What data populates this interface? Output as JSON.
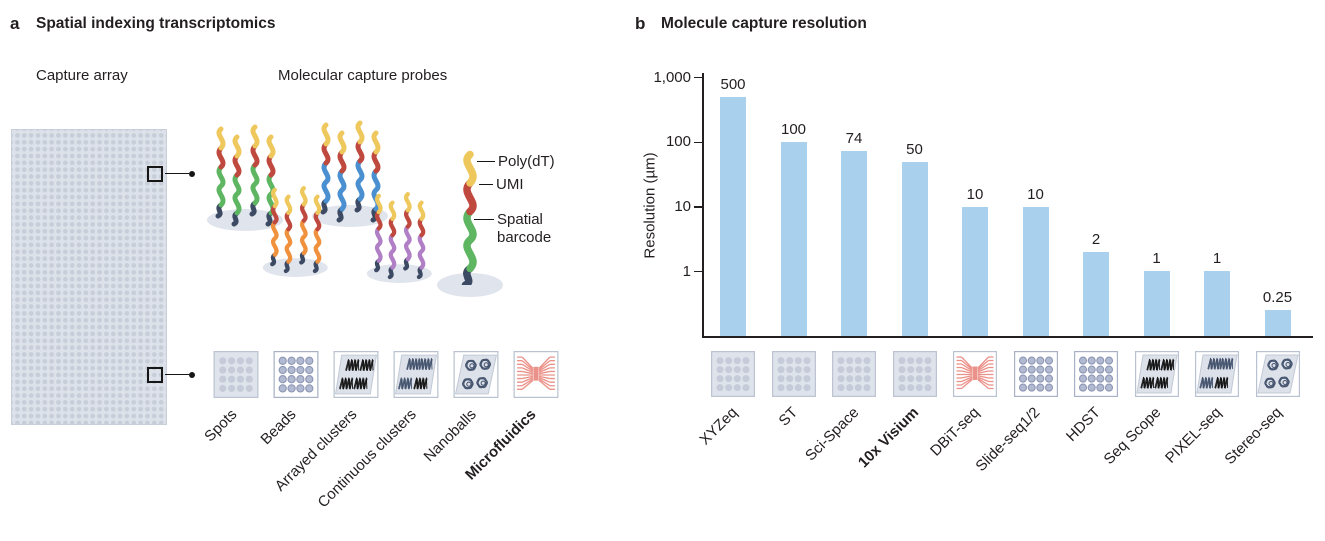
{
  "panel_a": {
    "panel_letter": "a",
    "title": "Spatial indexing transcriptomics",
    "capture_array_label": "Capture array",
    "probes_label": "Molecular capture probes",
    "probe_legend": {
      "polydt": "Poly(dT)",
      "umi": "UMI",
      "spatial": "Spatial barcode"
    },
    "array_types": [
      {
        "label": "Spots",
        "icon": "spots-icon",
        "bold": false
      },
      {
        "label": "Beads",
        "icon": "beads-icon",
        "bold": false
      },
      {
        "label": "Arrayed clusters",
        "icon": "arrayed-clusters-icon",
        "bold": false
      },
      {
        "label": "Continuous clusters",
        "icon": "continuous-clusters-icon",
        "bold": false
      },
      {
        "label": "Nanoballs",
        "icon": "nanoballs-icon",
        "bold": false
      },
      {
        "label": "Microfluidics",
        "icon": "microfluidics-icon",
        "bold": true
      }
    ]
  },
  "panel_b": {
    "panel_letter": "b",
    "title": "Molecule capture resolution"
  },
  "chart_data": {
    "type": "bar",
    "title": "Molecule capture resolution",
    "categories": [
      "XYZeq",
      "ST",
      "Sci-Space",
      "10x Visium",
      "DBiT-seq",
      "Slide-seq1/2",
      "HDST",
      "Seq Scope",
      "PIXEL-seq",
      "Stereo-seq"
    ],
    "values": [
      500,
      100,
      74,
      50,
      10,
      10,
      2,
      1,
      1,
      0.25
    ],
    "value_labels": [
      "500",
      "100",
      "74",
      "50",
      "10",
      "10",
      "2",
      "1",
      "1",
      "0.25"
    ],
    "bold_categories": [
      "10x Visium"
    ],
    "category_icons": [
      "spots-icon",
      "spots-icon",
      "spots-icon",
      "spots-icon",
      "microfluidics-icon",
      "beads-icon",
      "beads-icon",
      "arrayed-clusters-icon",
      "continuous-clusters-icon",
      "nanoballs-icon"
    ],
    "xlabel": "",
    "ylabel": "Resolution (µm)",
    "yscale": "log",
    "ylim": [
      0.1,
      1000
    ],
    "yticks": [
      "1,000",
      "100",
      "10",
      "1"
    ],
    "ytick_values": [
      1000,
      100,
      10,
      1
    ],
    "bar_color": "#a9d1ed",
    "grid": false,
    "legend_position": "none"
  },
  "colors": {
    "text": "#231f20",
    "bar": "#a9d1ed",
    "probe_polydt": "#eec85c",
    "probe_umi": "#c0493f",
    "probe_anchor": "#3c4a63",
    "cluster_variants": [
      "#5eb662",
      "#4a90d0",
      "#f0913e",
      "#b07fc5"
    ],
    "array_fill": "#dde2ea",
    "array_dot": "#c7ced9",
    "microfluidics_red": "#eb9189"
  }
}
